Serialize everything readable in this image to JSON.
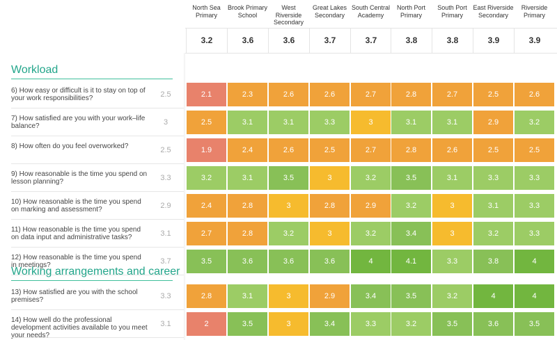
{
  "schools": [
    {
      "name": "North Sea\nPrimary",
      "score": "3.2"
    },
    {
      "name": "Brook Primary\nSchool",
      "score": "3.6"
    },
    {
      "name": "West\nRiverside\nSecondary",
      "score": "3.6"
    },
    {
      "name": "Great Lakes\nSecondary",
      "score": "3.7"
    },
    {
      "name": "South Central\nAcademy",
      "score": "3.7"
    },
    {
      "name": "North Port\nPrimary",
      "score": "3.8"
    },
    {
      "name": "South Port\nPrimary",
      "score": "3.8"
    },
    {
      "name": "East Riverside\nSecondary",
      "score": "3.9"
    },
    {
      "name": "Riverside\nPrimary",
      "score": "3.9"
    }
  ],
  "sections": [
    {
      "title": "Workload",
      "questions": [
        {
          "text": "6) How easy or difficult is it to stay on top of your work responsibilities?",
          "avg": "2.5",
          "values": [
            "2.1",
            "2.3",
            "2.6",
            "2.6",
            "2.7",
            "2.8",
            "2.7",
            "2.5",
            "2.6"
          ]
        },
        {
          "text": "7) How satisfied are you with your work–life balance?",
          "avg": "3",
          "values": [
            "2.5",
            "3.1",
            "3.1",
            "3.3",
            "3",
            "3.1",
            "3.1",
            "2.9",
            "3.2"
          ]
        },
        {
          "text": "8) How often do you feel overworked?",
          "avg": "2.5",
          "values": [
            "1.9",
            "2.4",
            "2.6",
            "2.5",
            "2.7",
            "2.8",
            "2.6",
            "2.5",
            "2.5"
          ]
        },
        {
          "text": "9) How reasonable is the time you spend on lesson planning?",
          "avg": "3.3",
          "values": [
            "3.2",
            "3.1",
            "3.5",
            "3",
            "3.2",
            "3.5",
            "3.1",
            "3.3",
            "3.3"
          ]
        },
        {
          "text": "10) How reasonable is the time you spend on marking and assessment?",
          "avg": "2.9",
          "values": [
            "2.4",
            "2.8",
            "3",
            "2.8",
            "2.9",
            "3.2",
            "3",
            "3.1",
            "3.3"
          ]
        },
        {
          "text": "11) How reasonable is the time you spend on data input and administrative tasks?",
          "avg": "3.1",
          "values": [
            "2.7",
            "2.8",
            "3.2",
            "3",
            "3.2",
            "3.4",
            "3",
            "3.2",
            "3.3"
          ]
        },
        {
          "text": "12) How reasonable is the time you spend in meetings?",
          "avg": "3.7",
          "values": [
            "3.5",
            "3.6",
            "3.6",
            "3.6",
            "4",
            "4.1",
            "3.3",
            "3.8",
            "4"
          ]
        }
      ]
    },
    {
      "title": "Working arrangements and career",
      "questions": [
        {
          "text": "13) How satisfied are you with the school premises?",
          "avg": "3.3",
          "values": [
            "2.8",
            "3.1",
            "3",
            "2.9",
            "3.4",
            "3.5",
            "3.2",
            "4",
            "4"
          ]
        },
        {
          "text": "14) How well do the professional development activities available to you meet your needs?",
          "avg": "3.1",
          "values": [
            "2",
            "3.5",
            "3",
            "3.4",
            "3.3",
            "3.2",
            "3.5",
            "3.6",
            "3.5"
          ]
        }
      ]
    }
  ],
  "colors": {
    "accent": "#22a58a",
    "scale": {
      "red": "#e8826b",
      "orange": "#f0a23a",
      "amber": "#f6bb2e",
      "lightgreen": "#9ccc65",
      "green": "#88c057",
      "darkgreen": "#72b63f"
    }
  }
}
